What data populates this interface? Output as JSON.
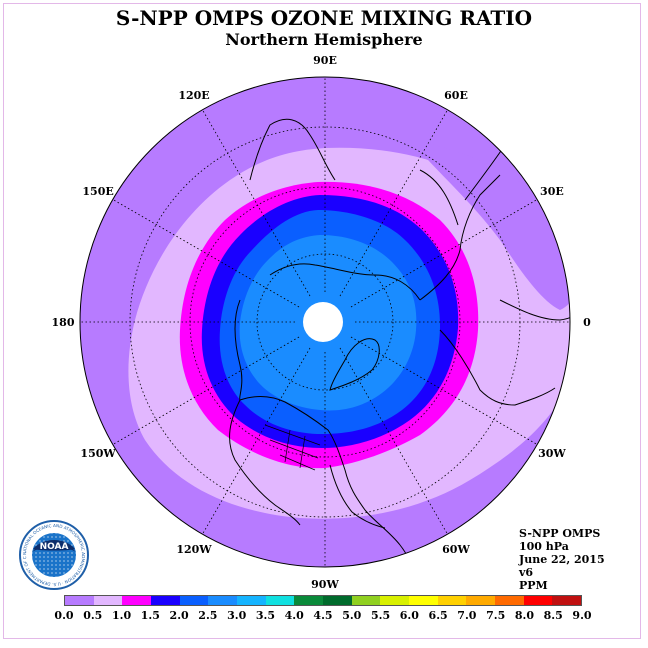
{
  "title": "S-NPP OMPS OZONE MIXING RATIO",
  "subtitle": "Northern Hemisphere",
  "longitudes": [
    {
      "label": "90E",
      "lon": 90
    },
    {
      "label": "60E",
      "lon": 60
    },
    {
      "label": "30E",
      "lon": 30
    },
    {
      "label": "0",
      "lon": 0
    },
    {
      "label": "30W",
      "lon": -30
    },
    {
      "label": "60W",
      "lon": -60
    },
    {
      "label": "90W",
      "lon": -90
    },
    {
      "label": "120W",
      "lon": -120
    },
    {
      "label": "150W",
      "lon": -150
    },
    {
      "label": "180",
      "lon": 180
    },
    {
      "label": "150E",
      "lon": 150
    },
    {
      "label": "120E",
      "lon": 120
    }
  ],
  "info": {
    "instrument": "S-NPP OMPS",
    "level": "100 hPa",
    "date": "June 22, 2015",
    "version": "v6",
    "units": "PPM"
  },
  "colorbar": {
    "ticks": [
      "0.0",
      "0.5",
      "1.0",
      "1.5",
      "2.0",
      "2.5",
      "3.0",
      "3.5",
      "4.0",
      "4.5",
      "5.0",
      "5.5",
      "6.0",
      "6.5",
      "7.0",
      "7.5",
      "8.0",
      "8.5",
      "9.0"
    ],
    "colors": [
      "#b77bff",
      "#e2b7ff",
      "#ff00ff",
      "#1a00ff",
      "#0a5fff",
      "#1a8cff",
      "#15b4ff",
      "#10e0e0",
      "#0a8a3a",
      "#006b2c",
      "#90d020",
      "#d8f000",
      "#ffff00",
      "#ffd000",
      "#ffaa00",
      "#ff6a00",
      "#ff0000",
      "#c01010",
      "#8b5a3a"
    ]
  },
  "map": {
    "outer_color": "#b77bff",
    "ring_colors": [
      "#e2b7ff",
      "#ff00ff",
      "#1a00ff",
      "#0a5fff",
      "#1a8cff"
    ],
    "pole_color": "#ffffff"
  },
  "logo": {
    "text": "NOAA",
    "ring_text": "NATIONAL OCEANIC AND ATMOSPHERIC ADMINISTRATION · U.S. DEPARTMENT OF COMMERCE"
  }
}
